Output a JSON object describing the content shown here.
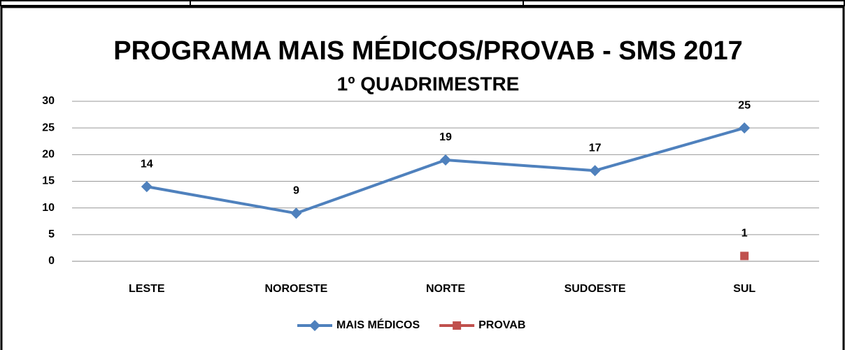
{
  "chart_data": {
    "type": "line",
    "title": "PROGRAMA MAIS MÉDICOS/PROVAB - SMS 2017",
    "subtitle": "1º QUADRIMESTRE",
    "categories": [
      "LESTE",
      "NOROESTE",
      "NORTE",
      "SUDOESTE",
      "SUL"
    ],
    "series": [
      {
        "name": "MAIS MÉDICOS",
        "color": "#4f81bd",
        "marker": "diamond",
        "values": [
          14,
          9,
          19,
          17,
          25
        ]
      },
      {
        "name": "PROVAB",
        "color": "#c0504d",
        "marker": "square",
        "values": [
          null,
          null,
          null,
          null,
          1
        ]
      }
    ],
    "ylim": [
      0,
      30
    ],
    "yticks": [
      0,
      5,
      10,
      15,
      20,
      25,
      30
    ],
    "grid": true,
    "legend": "bottom"
  }
}
